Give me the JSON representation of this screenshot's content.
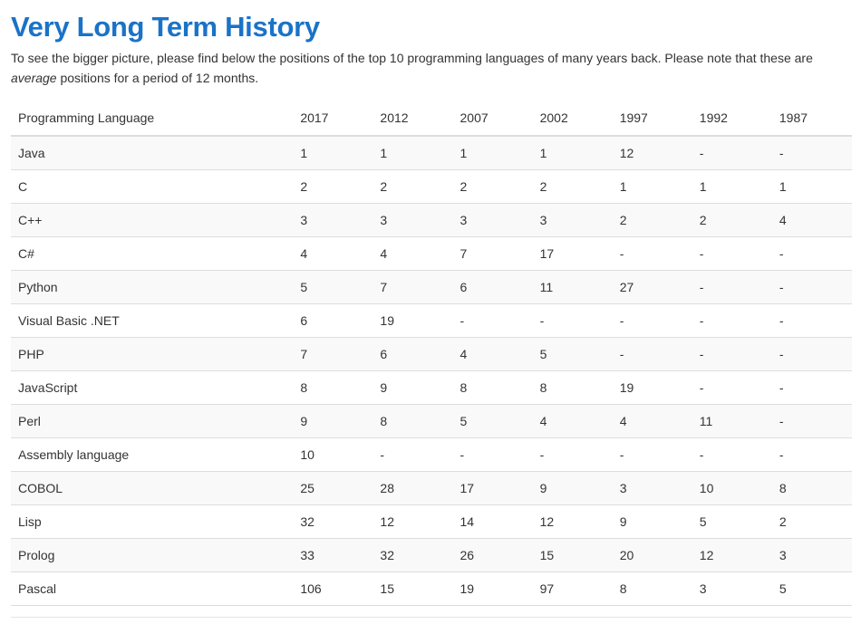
{
  "section": {
    "title": "Very Long Term History",
    "intro_before": "To see the bigger picture, please find below the positions of the top 10 programming languages of many years back. Please note that these are ",
    "intro_emphasis": "average",
    "intro_after": " positions for a period of 12 months."
  },
  "table": {
    "headers": [
      "Programming Language",
      "2017",
      "2012",
      "2007",
      "2002",
      "1997",
      "1992",
      "1987"
    ],
    "rows": [
      [
        "Java",
        "1",
        "1",
        "1",
        "1",
        "12",
        "-",
        "-"
      ],
      [
        "C",
        "2",
        "2",
        "2",
        "2",
        "1",
        "1",
        "1"
      ],
      [
        "C++",
        "3",
        "3",
        "3",
        "3",
        "2",
        "2",
        "4"
      ],
      [
        "C#",
        "4",
        "4",
        "7",
        "17",
        "-",
        "-",
        "-"
      ],
      [
        "Python",
        "5",
        "7",
        "6",
        "11",
        "27",
        "-",
        "-"
      ],
      [
        "Visual Basic .NET",
        "6",
        "19",
        "-",
        "-",
        "-",
        "-",
        "-"
      ],
      [
        "PHP",
        "7",
        "6",
        "4",
        "5",
        "-",
        "-",
        "-"
      ],
      [
        "JavaScript",
        "8",
        "9",
        "8",
        "8",
        "19",
        "-",
        "-"
      ],
      [
        "Perl",
        "9",
        "8",
        "5",
        "4",
        "4",
        "11",
        "-"
      ],
      [
        "Assembly language",
        "10",
        "-",
        "-",
        "-",
        "-",
        "-",
        "-"
      ],
      [
        "COBOL",
        "25",
        "28",
        "17",
        "9",
        "3",
        "10",
        "8"
      ],
      [
        "Lisp",
        "32",
        "12",
        "14",
        "12",
        "9",
        "5",
        "2"
      ],
      [
        "Prolog",
        "33",
        "32",
        "26",
        "15",
        "20",
        "12",
        "3"
      ],
      [
        "Pascal",
        "106",
        "15",
        "19",
        "97",
        "8",
        "3",
        "5"
      ]
    ]
  },
  "colors": {
    "title": "#1a73c7",
    "text": "#333333",
    "stripe": "#f9f9f9",
    "border": "#dddddd"
  }
}
